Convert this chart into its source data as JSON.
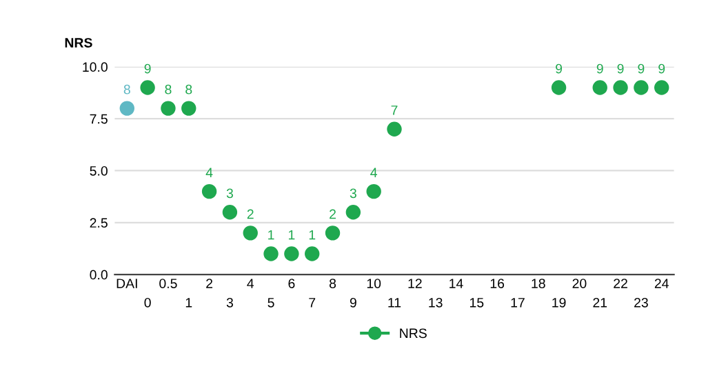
{
  "chart_data": {
    "type": "scatter",
    "ylabel": "NRS",
    "categories": [
      "DAI",
      "0",
      "0.5",
      "1",
      "2",
      "3",
      "4",
      "5",
      "6",
      "7",
      "8",
      "9",
      "10",
      "11",
      "12",
      "13",
      "14",
      "15",
      "16",
      "17",
      "18",
      "19",
      "20",
      "21",
      "22",
      "23",
      "24"
    ],
    "series": [
      {
        "name": "NRS",
        "color": "#1fa84f",
        "colors": [
          "#5fb8c4",
          "#1fa84f",
          "#1fa84f",
          "#1fa84f",
          "#1fa84f",
          "#1fa84f",
          "#1fa84f",
          "#1fa84f",
          "#1fa84f",
          "#1fa84f",
          "#1fa84f",
          "#1fa84f",
          "#1fa84f",
          "#1fa84f",
          "#1fa84f",
          "#1fa84f",
          "#1fa84f",
          "#1fa84f",
          "#1fa84f",
          "#1fa84f",
          "#1fa84f",
          "#1fa84f",
          "#1fa84f",
          "#1fa84f",
          "#1fa84f",
          "#1fa84f",
          "#1fa84f"
        ],
        "values": [
          8,
          9,
          8,
          8,
          4,
          3,
          2,
          1,
          1,
          1,
          2,
          3,
          4,
          7,
          null,
          null,
          null,
          null,
          null,
          null,
          null,
          9,
          null,
          9,
          9,
          9,
          9
        ]
      }
    ],
    "ylim": [
      0,
      10
    ],
    "yticks": [
      {
        "value": 0,
        "label": "0.0"
      },
      {
        "value": 2.5,
        "label": "2.5"
      },
      {
        "value": 5,
        "label": "5.0"
      },
      {
        "value": 7.5,
        "label": "7.5"
      },
      {
        "value": 10,
        "label": "10.0"
      }
    ],
    "grid": "y",
    "legend": "bottom",
    "marker": "circle",
    "data_labels": true
  }
}
